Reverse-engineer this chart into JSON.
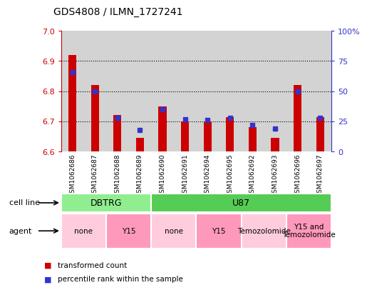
{
  "title": "GDS4808 / ILMN_1727241",
  "samples": [
    "GSM1062686",
    "GSM1062687",
    "GSM1062688",
    "GSM1062689",
    "GSM1062690",
    "GSM1062691",
    "GSM1062694",
    "GSM1062695",
    "GSM1062692",
    "GSM1062693",
    "GSM1062696",
    "GSM1062697"
  ],
  "red_values": [
    6.92,
    6.82,
    6.72,
    6.645,
    6.75,
    6.7,
    6.7,
    6.715,
    6.68,
    6.645,
    6.82,
    6.715
  ],
  "blue_values": [
    66,
    50,
    28,
    18,
    35,
    27,
    26,
    28,
    22,
    19,
    50,
    28
  ],
  "ymin": 6.6,
  "ymax": 7.0,
  "y2min": 0,
  "y2max": 100,
  "yticks": [
    6.6,
    6.7,
    6.8,
    6.9,
    7.0
  ],
  "y2ticks": [
    0,
    25,
    50,
    75,
    100
  ],
  "y2ticklabels": [
    "0",
    "25",
    "50",
    "75",
    "100%"
  ],
  "cell_line_groups": [
    {
      "label": "DBTRG",
      "start": 0,
      "end": 4,
      "color": "#90ee90"
    },
    {
      "label": "U87",
      "start": 4,
      "end": 12,
      "color": "#55cc55"
    }
  ],
  "agent_groups": [
    {
      "label": "none",
      "start": 0,
      "end": 2,
      "color": "#ffccdd"
    },
    {
      "label": "Y15",
      "start": 2,
      "end": 4,
      "color": "#ff99bb"
    },
    {
      "label": "none",
      "start": 4,
      "end": 6,
      "color": "#ffccdd"
    },
    {
      "label": "Y15",
      "start": 6,
      "end": 8,
      "color": "#ff99bb"
    },
    {
      "label": "Temozolomide",
      "start": 8,
      "end": 10,
      "color": "#ffccdd"
    },
    {
      "label": "Y15 and\nTemozolomide",
      "start": 10,
      "end": 12,
      "color": "#ff99bb"
    }
  ],
  "bar_color": "#cc0000",
  "dot_color": "#3333cc",
  "bg_color": "#d3d3d3",
  "plot_bg": "#ffffff",
  "left_axis_color": "#cc0000",
  "right_axis_color": "#3333cc",
  "legend_red": "transformed count",
  "legend_blue": "percentile rank within the sample",
  "cell_line_label": "cell line",
  "agent_label": "agent"
}
